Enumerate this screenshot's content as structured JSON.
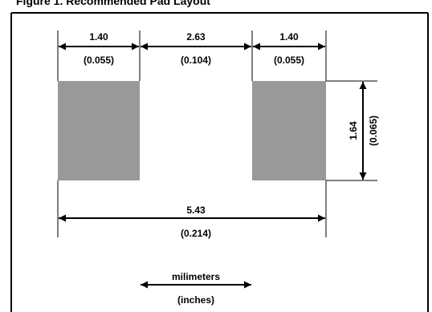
{
  "title": "Figure 1. Recommended Pad Layout",
  "colors": {
    "pad": "#999999",
    "line": "#000000",
    "border": "#000000"
  },
  "dimensions": {
    "left_pad_width": {
      "mm": "1.40",
      "in": "(0.055)"
    },
    "gap": {
      "mm": "2.63",
      "in": "(0.104)"
    },
    "right_pad_width": {
      "mm": "1.40",
      "in": "(0.055)"
    },
    "pad_height": {
      "mm": "1.64",
      "in": "(0.065)"
    },
    "overall_length": {
      "mm": "5.43",
      "in": "(0.214)"
    }
  },
  "legend": {
    "units_primary": "milimeters",
    "units_secondary": "(inches)"
  }
}
